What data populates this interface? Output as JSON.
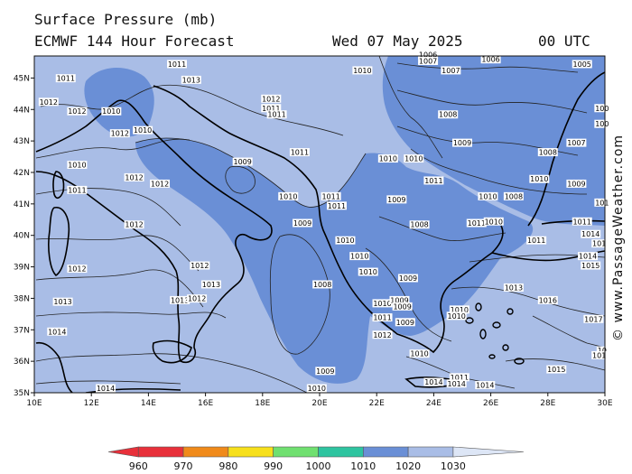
{
  "header": {
    "title": "Surface Pressure (mb)",
    "model": "ECMWF 144 Hour Forecast",
    "date": "Wed 07 May 2025",
    "time": "00 UTC"
  },
  "copyright": "© www.PassageWeather.com",
  "axes": {
    "lat_labels": [
      "45N",
      "44N",
      "43N",
      "42N",
      "41N",
      "40N",
      "39N",
      "38N",
      "37N",
      "36N",
      "35N"
    ],
    "lon_labels": [
      "10E",
      "12E",
      "14E",
      "16E",
      "18E",
      "20E",
      "22E",
      "24E",
      "26E",
      "28E",
      "30E"
    ],
    "lat_range": [
      35,
      45.7
    ],
    "lon_range": [
      10,
      30
    ]
  },
  "isobar_labels": [
    "1011",
    "1013",
    "1012",
    "1010",
    "1009",
    "1008",
    "1007",
    "1006",
    "1005",
    "1014",
    "1015",
    "1016",
    "1017"
  ],
  "map_labels": [
    {
      "text": "1011",
      "lon": 11.1,
      "lat": 44.95
    },
    {
      "text": "1011",
      "lon": 15.0,
      "lat": 45.4
    },
    {
      "text": "1013",
      "lon": 15.5,
      "lat": 44.9
    },
    {
      "text": "1010",
      "lon": 21.5,
      "lat": 45.2
    },
    {
      "text": "1006",
      "lon": 23.8,
      "lat": 45.7
    },
    {
      "text": "1007",
      "lon": 23.8,
      "lat": 45.5
    },
    {
      "text": "1007",
      "lon": 24.6,
      "lat": 45.2
    },
    {
      "text": "1006",
      "lon": 26.0,
      "lat": 45.55
    },
    {
      "text": "1005",
      "lon": 29.2,
      "lat": 45.4
    },
    {
      "text": "1012",
      "lon": 10.5,
      "lat": 44.2
    },
    {
      "text": "1012",
      "lon": 11.5,
      "lat": 43.9
    },
    {
      "text": "1010",
      "lon": 12.7,
      "lat": 43.9
    },
    {
      "text": "1012",
      "lon": 18.3,
      "lat": 44.3
    },
    {
      "text": "1011",
      "lon": 18.3,
      "lat": 44.0
    },
    {
      "text": "1011",
      "lon": 18.5,
      "lat": 43.8
    },
    {
      "text": "1008",
      "lon": 24.5,
      "lat": 43.8
    },
    {
      "text": "100",
      "lon": 29.9,
      "lat": 44.0
    },
    {
      "text": "100",
      "lon": 29.9,
      "lat": 43.5
    },
    {
      "text": "1010",
      "lon": 13.8,
      "lat": 43.3
    },
    {
      "text": "1012",
      "lon": 13.0,
      "lat": 43.2
    },
    {
      "text": "1009",
      "lon": 25.0,
      "lat": 42.9
    },
    {
      "text": "1007",
      "lon": 29.0,
      "lat": 42.9
    },
    {
      "text": "1011",
      "lon": 19.3,
      "lat": 42.6
    },
    {
      "text": "1010",
      "lon": 22.4,
      "lat": 42.4
    },
    {
      "text": "1010",
      "lon": 23.3,
      "lat": 42.4
    },
    {
      "text": "1008",
      "lon": 28.0,
      "lat": 42.6
    },
    {
      "text": "1009",
      "lon": 17.3,
      "lat": 42.3
    },
    {
      "text": "1010",
      "lon": 11.5,
      "lat": 42.2
    },
    {
      "text": "1010",
      "lon": 27.7,
      "lat": 41.75
    },
    {
      "text": "1012",
      "lon": 13.5,
      "lat": 41.8
    },
    {
      "text": "1012",
      "lon": 14.4,
      "lat": 41.6
    },
    {
      "text": "1011",
      "lon": 24.0,
      "lat": 41.7
    },
    {
      "text": "1009",
      "lon": 29.0,
      "lat": 41.6
    },
    {
      "text": "1011",
      "lon": 11.5,
      "lat": 41.4
    },
    {
      "text": "1010",
      "lon": 18.9,
      "lat": 41.2
    },
    {
      "text": "1011",
      "lon": 20.4,
      "lat": 41.2
    },
    {
      "text": "1011",
      "lon": 20.6,
      "lat": 40.9
    },
    {
      "text": "1009",
      "lon": 22.7,
      "lat": 41.1
    },
    {
      "text": "1010",
      "lon": 25.9,
      "lat": 41.2
    },
    {
      "text": "1008",
      "lon": 26.8,
      "lat": 41.2
    },
    {
      "text": "101",
      "lon": 29.9,
      "lat": 41.0
    },
    {
      "text": "1012",
      "lon": 13.5,
      "lat": 40.3
    },
    {
      "text": "1009",
      "lon": 19.4,
      "lat": 40.35
    },
    {
      "text": "1008",
      "lon": 23.5,
      "lat": 40.3
    },
    {
      "text": "1011",
      "lon": 25.5,
      "lat": 40.35
    },
    {
      "text": "1010",
      "lon": 26.1,
      "lat": 40.4
    },
    {
      "text": "1011",
      "lon": 29.2,
      "lat": 40.4
    },
    {
      "text": "1014",
      "lon": 29.5,
      "lat": 40.0
    },
    {
      "text": "1010",
      "lon": 20.9,
      "lat": 39.8
    },
    {
      "text": "1011",
      "lon": 27.6,
      "lat": 39.8
    },
    {
      "text": "101",
      "lon": 29.8,
      "lat": 39.7
    },
    {
      "text": "1010",
      "lon": 21.4,
      "lat": 39.3
    },
    {
      "text": "1010",
      "lon": 21.7,
      "lat": 38.8
    },
    {
      "text": "1014",
      "lon": 29.4,
      "lat": 39.3
    },
    {
      "text": "1015",
      "lon": 29.5,
      "lat": 39.0
    },
    {
      "text": "1012",
      "lon": 11.5,
      "lat": 38.9
    },
    {
      "text": "1012",
      "lon": 15.8,
      "lat": 39.0
    },
    {
      "text": "1013",
      "lon": 16.2,
      "lat": 38.4
    },
    {
      "text": "1008",
      "lon": 20.1,
      "lat": 38.4
    },
    {
      "text": "1009",
      "lon": 23.1,
      "lat": 38.6
    },
    {
      "text": "1013",
      "lon": 26.8,
      "lat": 38.3
    },
    {
      "text": "1016",
      "lon": 28.0,
      "lat": 37.9
    },
    {
      "text": "1010",
      "lon": 22.2,
      "lat": 37.8
    },
    {
      "text": "1009",
      "lon": 22.8,
      "lat": 37.9
    },
    {
      "text": "1009",
      "lon": 22.9,
      "lat": 37.7
    },
    {
      "text": "1013",
      "lon": 11.0,
      "lat": 37.85
    },
    {
      "text": "1013",
      "lon": 15.1,
      "lat": 37.9
    },
    {
      "text": "1012",
      "lon": 15.7,
      "lat": 37.95
    },
    {
      "text": "1010",
      "lon": 24.9,
      "lat": 37.6
    },
    {
      "text": "1010",
      "lon": 24.8,
      "lat": 37.4
    },
    {
      "text": "1011",
      "lon": 22.2,
      "lat": 37.35
    },
    {
      "text": "1009",
      "lon": 23.0,
      "lat": 37.2
    },
    {
      "text": "1017",
      "lon": 29.6,
      "lat": 37.3
    },
    {
      "text": "1014",
      "lon": 10.8,
      "lat": 36.9
    },
    {
      "text": "1012",
      "lon": 22.2,
      "lat": 36.8
    },
    {
      "text": "1010",
      "lon": 23.5,
      "lat": 36.2
    },
    {
      "text": "10",
      "lon": 29.9,
      "lat": 36.3
    },
    {
      "text": "101",
      "lon": 29.8,
      "lat": 36.15
    },
    {
      "text": "1015",
      "lon": 28.3,
      "lat": 35.7
    },
    {
      "text": "1009",
      "lon": 20.2,
      "lat": 35.65
    },
    {
      "text": "1011",
      "lon": 24.9,
      "lat": 35.45
    },
    {
      "text": "1014",
      "lon": 24.0,
      "lat": 35.3
    },
    {
      "text": "1014",
      "lon": 24.8,
      "lat": 35.25
    },
    {
      "text": "1014",
      "lon": 25.8,
      "lat": 35.2
    },
    {
      "text": "1014",
      "lon": 12.5,
      "lat": 35.1
    },
    {
      "text": "1010",
      "lon": 19.9,
      "lat": 35.1
    }
  ],
  "legend": {
    "bins": [
      {
        "label": "960",
        "color": "#e8303a"
      },
      {
        "label": "970",
        "color": "#f08a1a"
      },
      {
        "label": "980",
        "color": "#f7e01c"
      },
      {
        "label": "990",
        "color": "#70e070"
      },
      {
        "label": "1000",
        "color": "#2ec4a0"
      },
      {
        "label": "1010",
        "color": "#6a8fd6"
      },
      {
        "label": "1020",
        "color": "#a9bde6"
      },
      {
        "label": "1030",
        "color": "#dde6f6"
      }
    ]
  },
  "colors": {
    "below_1010": "#6a8fd6",
    "from_1010_to_1020": "#a9bde6"
  }
}
